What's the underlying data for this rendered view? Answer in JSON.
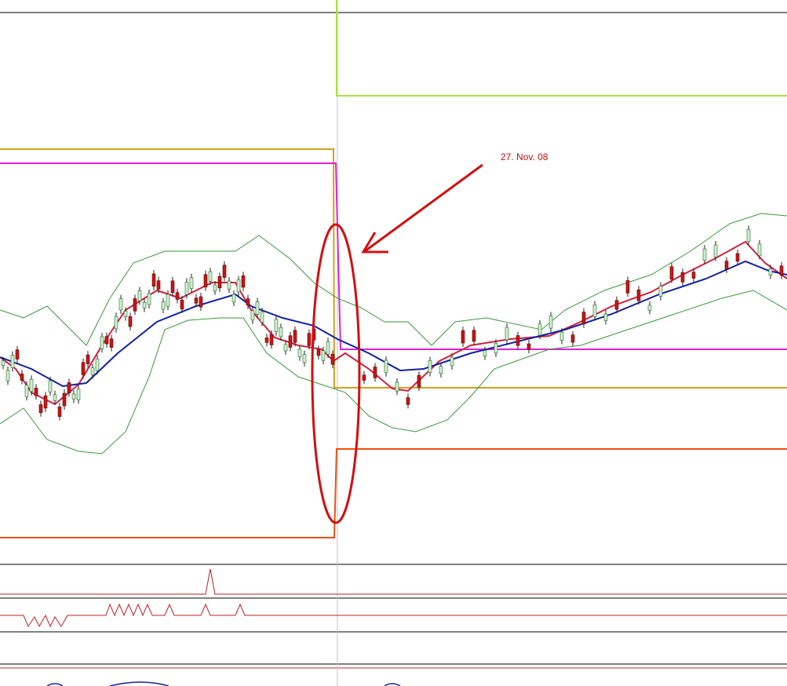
{
  "annotation": "27. Nov. 08"
}
